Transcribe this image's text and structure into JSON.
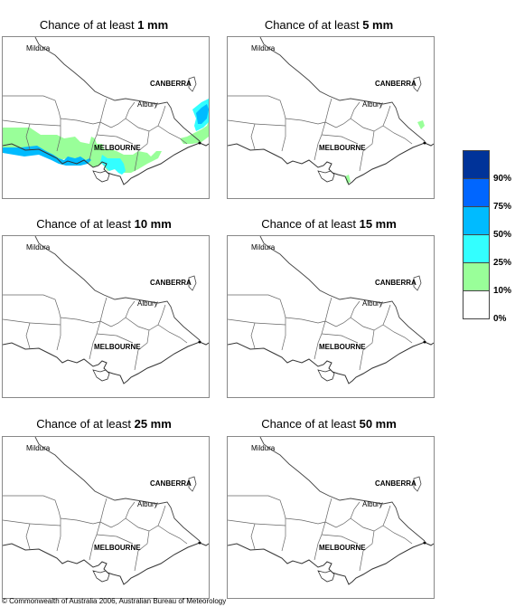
{
  "panels": [
    {
      "prefix": "Chance of at least ",
      "amount": "1 mm"
    },
    {
      "prefix": "Chance of at least ",
      "amount": "5 mm"
    },
    {
      "prefix": "Chance of at least ",
      "amount": "10 mm"
    },
    {
      "prefix": "Chance of at least ",
      "amount": "15 mm"
    },
    {
      "prefix": "Chance of at least ",
      "amount": "25 mm"
    },
    {
      "prefix": "Chance of at least ",
      "amount": "50 mm"
    }
  ],
  "places": {
    "mildura": "Mildura",
    "canberra": "CANBERRA",
    "albury": "Albury",
    "melbourne": "MELBOURNE"
  },
  "legend": {
    "colors": [
      "#003399",
      "#0066ff",
      "#00bbff",
      "#33ffff",
      "#99ff99",
      "#ffffff"
    ],
    "labels": [
      "90%",
      "75%",
      "50%",
      "25%",
      "10%",
      "0%"
    ]
  },
  "copyright": "© Commonwealth of Australia 2006, Australian Bureau of Meteorology"
}
